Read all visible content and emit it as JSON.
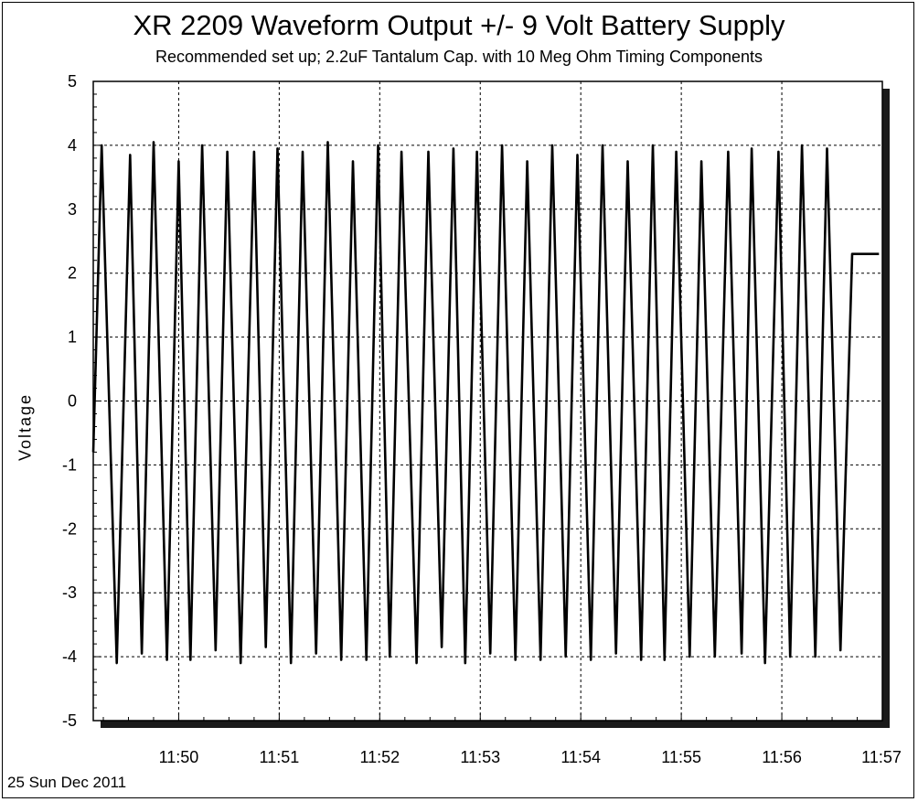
{
  "chart_data": {
    "type": "line",
    "title": "XR 2209 Waveform Output +/- 9 Volt Battery Supply",
    "subtitle": "Recommended set up; 2.2uF Tantalum Cap. with 10 Meg Ohm  Timing Components",
    "ylabel": "Voltage",
    "xlabel": "",
    "footer": "25 Sun Dec 2011",
    "ylim": [
      -5,
      5
    ],
    "yticks": [
      5,
      4,
      3,
      2,
      1,
      0,
      -1,
      -2,
      -3,
      -4,
      -5
    ],
    "xlim": [
      "11:49:09",
      "11:57:00"
    ],
    "xticks": [
      "11:50",
      "11:51",
      "11:52",
      "11:53",
      "11:54",
      "11:55",
      "11:56",
      "11:57"
    ],
    "grid": true,
    "series": [
      {
        "color": "#000000",
        "x": [
          "11:49:09",
          "11:49:14",
          "11:49:23",
          "11:49:31",
          "11:49:38",
          "11:49:45",
          "11:49:53",
          "11:50:00",
          "11:50:07",
          "11:50:14",
          "11:50:22",
          "11:50:29",
          "11:50:37",
          "11:50:45",
          "11:50:52",
          "11:50:59",
          "11:51:07",
          "11:51:14",
          "11:51:22",
          "11:51:29",
          "11:51:37",
          "11:51:44",
          "11:51:52",
          "11:51:59",
          "11:52:06",
          "11:52:13",
          "11:52:22",
          "11:52:29",
          "11:52:37",
          "11:52:44",
          "11:52:51",
          "11:52:58",
          "11:53:06",
          "11:53:13",
          "11:53:21",
          "11:53:28",
          "11:53:36",
          "11:53:43",
          "11:53:51",
          "11:53:58",
          "11:54:06",
          "11:54:13",
          "11:54:21",
          "11:54:28",
          "11:54:36",
          "11:54:43",
          "11:54:50",
          "11:54:57",
          "11:55:05",
          "11:55:12",
          "11:55:20",
          "11:55:28",
          "11:55:36",
          "11:55:42",
          "11:55:50",
          "11:55:58",
          "11:56:05",
          "11:56:12",
          "11:56:20",
          "11:56:27",
          "11:56:35",
          "11:56:42",
          "11:56:49",
          "11:56:58"
        ],
        "y": [
          -0.8,
          4.0,
          -4.1,
          3.85,
          -3.95,
          4.05,
          -4.05,
          3.75,
          -4.05,
          4.0,
          -3.9,
          3.9,
          -4.1,
          3.9,
          -3.85,
          3.95,
          -4.1,
          3.9,
          -3.95,
          4.05,
          -4.05,
          3.75,
          -4.05,
          4.0,
          -4.0,
          3.9,
          -4.1,
          3.9,
          -3.85,
          3.95,
          -4.1,
          3.9,
          -3.95,
          4.0,
          -4.05,
          3.75,
          -4.05,
          4.0,
          -4.0,
          3.85,
          -4.05,
          4.0,
          -3.95,
          3.75,
          -4.05,
          4.0,
          -4.05,
          3.9,
          -4.0,
          3.75,
          -4.0,
          3.9,
          -3.95,
          3.95,
          -4.1,
          3.9,
          -4.0,
          4.0,
          -4.0,
          3.95,
          -3.9,
          2.3,
          2.3,
          2.3
        ]
      }
    ]
  }
}
